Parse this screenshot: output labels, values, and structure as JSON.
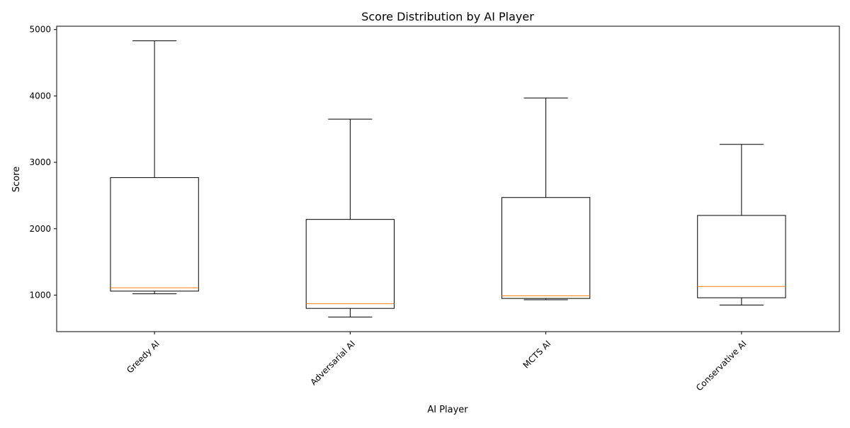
{
  "chart_data": {
    "type": "box",
    "title": "Score Distribution by AI Player",
    "xlabel": "AI Player",
    "ylabel": "Score",
    "ylim": [
      450,
      5050
    ],
    "yticks": [
      1000,
      2000,
      3000,
      4000,
      5000
    ],
    "categories": [
      "Greedy AI",
      "Adversarial AI",
      "MCTS AI",
      "Conservative AI"
    ],
    "boxes": [
      {
        "category": "Greedy AI",
        "whisker_low": 1020,
        "q1": 1060,
        "median": 1110,
        "q3": 2770,
        "whisker_high": 4830
      },
      {
        "category": "Adversarial AI",
        "whisker_low": 670,
        "q1": 800,
        "median": 870,
        "q3": 2140,
        "whisker_high": 3650
      },
      {
        "category": "MCTS AI",
        "whisker_low": 930,
        "q1": 950,
        "median": 990,
        "q3": 2470,
        "whisker_high": 3970
      },
      {
        "category": "Conservative AI",
        "whisker_low": 850,
        "q1": 960,
        "median": 1130,
        "q3": 2200,
        "whisker_high": 3270
      }
    ],
    "grid": false,
    "legend": "none",
    "colors": {
      "box": "#000000",
      "median": "#ff7f0e",
      "background": "#ffffff"
    }
  }
}
